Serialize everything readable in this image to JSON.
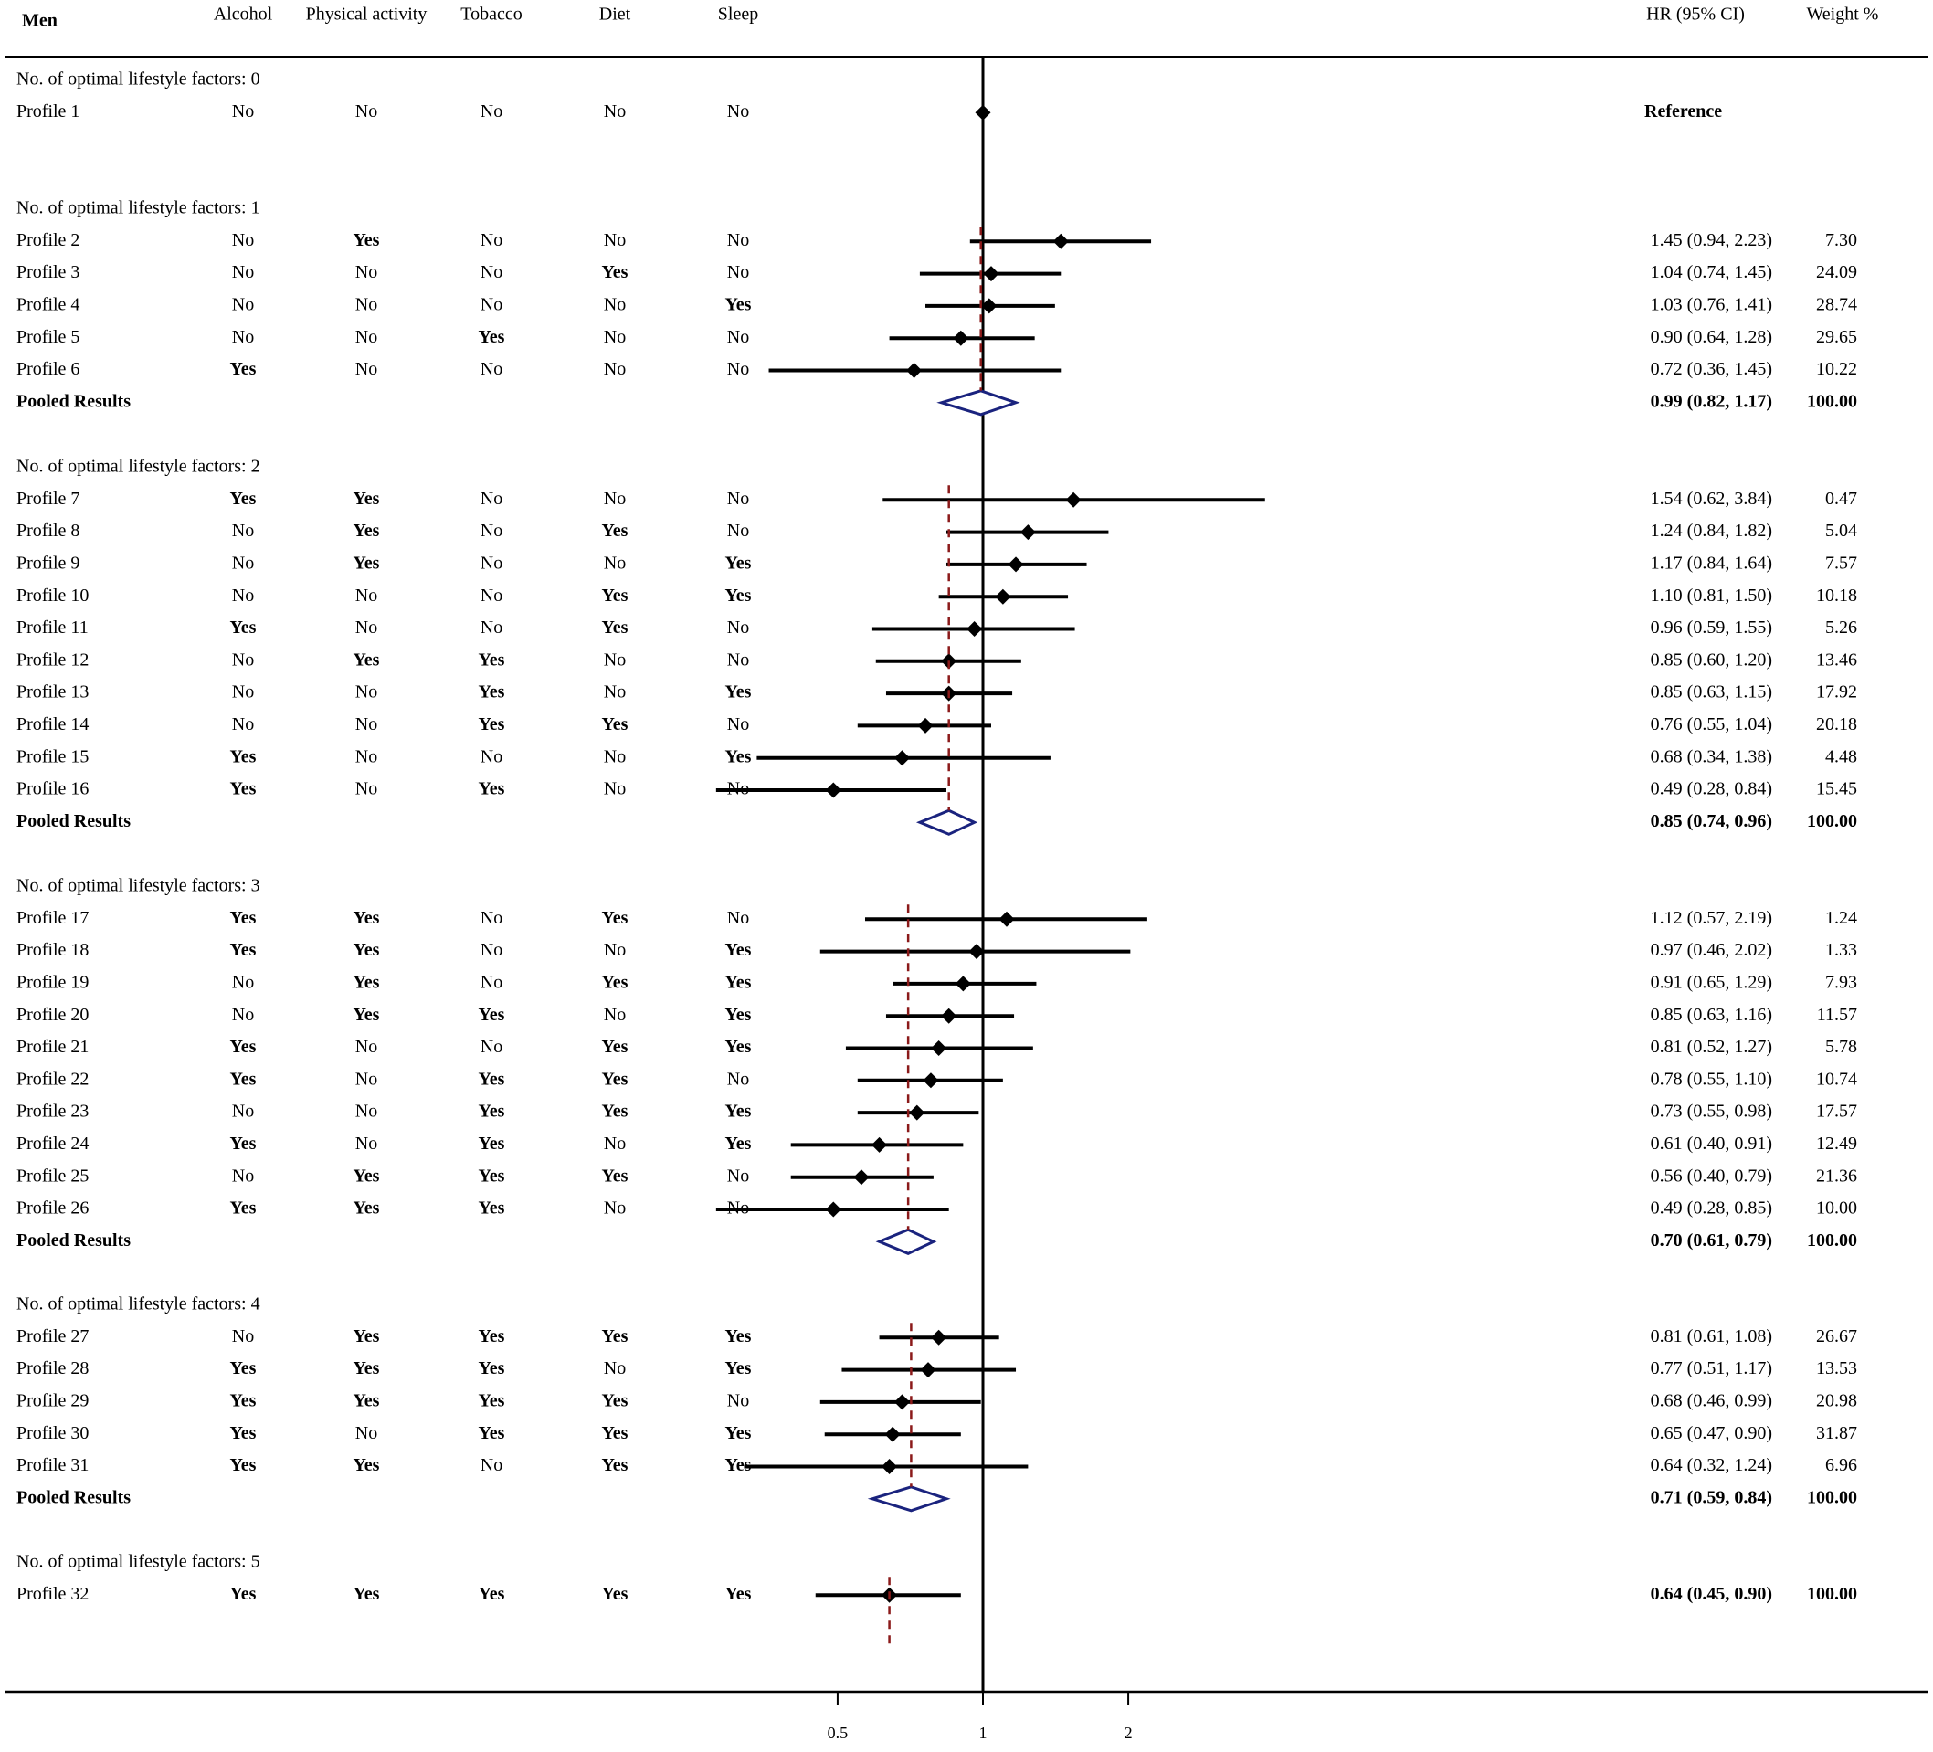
{
  "chart_data": {
    "type": "forest",
    "title": "Men",
    "header": {
      "group": "Men",
      "factors": [
        "Alcohol",
        "Physical activity",
        "Tobacco",
        "Diet",
        "Sleep"
      ],
      "hr_label": "HR (95% CI)",
      "weight_label": "Weight %"
    },
    "x_axis": {
      "ticks": [
        0.5,
        1,
        2
      ],
      "tick_labels": [
        "0.5",
        "1",
        "2"
      ],
      "reference_line": 1
    },
    "groups": [
      {
        "label": "No. of optimal lifestyle factors: 0",
        "rows": [
          {
            "profile": "Profile 1",
            "factors": [
              "No",
              "No",
              "No",
              "No",
              "No"
            ],
            "hr": 1.0,
            "lo": 1.0,
            "hi": 1.0,
            "hr_text": "Reference",
            "weight": ""
          }
        ]
      },
      {
        "label": "No. of optimal lifestyle factors: 1",
        "rows": [
          {
            "profile": "Profile 2",
            "factors": [
              "No",
              "Yes",
              "No",
              "No",
              "No"
            ],
            "hr": 1.45,
            "lo": 0.94,
            "hi": 2.23,
            "hr_text": "1.45 (0.94, 2.23)",
            "weight": "7.30"
          },
          {
            "profile": "Profile 3",
            "factors": [
              "No",
              "No",
              "No",
              "Yes",
              "No"
            ],
            "hr": 1.04,
            "lo": 0.74,
            "hi": 1.45,
            "hr_text": "1.04 (0.74, 1.45)",
            "weight": "24.09"
          },
          {
            "profile": "Profile 4",
            "factors": [
              "No",
              "No",
              "No",
              "No",
              "Yes"
            ],
            "hr": 1.03,
            "lo": 0.76,
            "hi": 1.41,
            "hr_text": "1.03 (0.76, 1.41)",
            "weight": "28.74"
          },
          {
            "profile": "Profile 5",
            "factors": [
              "No",
              "No",
              "Yes",
              "No",
              "No"
            ],
            "hr": 0.9,
            "lo": 0.64,
            "hi": 1.28,
            "hr_text": "0.90 (0.64, 1.28)",
            "weight": "29.65"
          },
          {
            "profile": "Profile 6",
            "factors": [
              "Yes",
              "No",
              "No",
              "No",
              "No"
            ],
            "hr": 0.72,
            "lo": 0.36,
            "hi": 1.45,
            "hr_text": "0.72 (0.36, 1.45)",
            "weight": "10.22"
          }
        ],
        "pooled": {
          "label": "Pooled Results",
          "hr": 0.99,
          "lo": 0.82,
          "hi": 1.17,
          "hr_text": "0.99 (0.82, 1.17)",
          "weight": "100.00"
        }
      },
      {
        "label": "No. of optimal lifestyle factors: 2",
        "rows": [
          {
            "profile": "Profile 7",
            "factors": [
              "Yes",
              "Yes",
              "No",
              "No",
              "No"
            ],
            "hr": 1.54,
            "lo": 0.62,
            "hi": 3.84,
            "hr_text": "1.54 (0.62, 3.84)",
            "weight": "0.47"
          },
          {
            "profile": "Profile 8",
            "factors": [
              "No",
              "Yes",
              "No",
              "Yes",
              "No"
            ],
            "hr": 1.24,
            "lo": 0.84,
            "hi": 1.82,
            "hr_text": "1.24 (0.84, 1.82)",
            "weight": "5.04"
          },
          {
            "profile": "Profile 9",
            "factors": [
              "No",
              "Yes",
              "No",
              "No",
              "Yes"
            ],
            "hr": 1.17,
            "lo": 0.84,
            "hi": 1.64,
            "hr_text": "1.17 (0.84, 1.64)",
            "weight": "7.57"
          },
          {
            "profile": "Profile 10",
            "factors": [
              "No",
              "No",
              "No",
              "Yes",
              "Yes"
            ],
            "hr": 1.1,
            "lo": 0.81,
            "hi": 1.5,
            "hr_text": "1.10 (0.81, 1.50)",
            "weight": "10.18"
          },
          {
            "profile": "Profile 11",
            "factors": [
              "Yes",
              "No",
              "No",
              "Yes",
              "No"
            ],
            "hr": 0.96,
            "lo": 0.59,
            "hi": 1.55,
            "hr_text": "0.96 (0.59, 1.55)",
            "weight": "5.26"
          },
          {
            "profile": "Profile 12",
            "factors": [
              "No",
              "Yes",
              "Yes",
              "No",
              "No"
            ],
            "hr": 0.85,
            "lo": 0.6,
            "hi": 1.2,
            "hr_text": "0.85 (0.60, 1.20)",
            "weight": "13.46"
          },
          {
            "profile": "Profile 13",
            "factors": [
              "No",
              "No",
              "Yes",
              "No",
              "Yes"
            ],
            "hr": 0.85,
            "lo": 0.63,
            "hi": 1.15,
            "hr_text": "0.85 (0.63, 1.15)",
            "weight": "17.92"
          },
          {
            "profile": "Profile 14",
            "factors": [
              "No",
              "No",
              "Yes",
              "Yes",
              "No"
            ],
            "hr": 0.76,
            "lo": 0.55,
            "hi": 1.04,
            "hr_text": "0.76 (0.55, 1.04)",
            "weight": "20.18"
          },
          {
            "profile": "Profile 15",
            "factors": [
              "Yes",
              "No",
              "No",
              "No",
              "Yes"
            ],
            "hr": 0.68,
            "lo": 0.34,
            "hi": 1.38,
            "hr_text": "0.68 (0.34, 1.38)",
            "weight": "4.48"
          },
          {
            "profile": "Profile 16",
            "factors": [
              "Yes",
              "No",
              "Yes",
              "No",
              "No"
            ],
            "hr": 0.49,
            "lo": 0.28,
            "hi": 0.84,
            "hr_text": "0.49 (0.28, 0.84)",
            "weight": "15.45"
          }
        ],
        "pooled": {
          "label": "Pooled Results",
          "hr": 0.85,
          "lo": 0.74,
          "hi": 0.96,
          "hr_text": "0.85 (0.74, 0.96)",
          "weight": "100.00"
        }
      },
      {
        "label": "No. of optimal lifestyle factors: 3",
        "rows": [
          {
            "profile": "Profile 17",
            "factors": [
              "Yes",
              "Yes",
              "No",
              "Yes",
              "No"
            ],
            "hr": 1.12,
            "lo": 0.57,
            "hi": 2.19,
            "hr_text": "1.12 (0.57, 2.19)",
            "weight": "1.24"
          },
          {
            "profile": "Profile 18",
            "factors": [
              "Yes",
              "Yes",
              "No",
              "No",
              "Yes"
            ],
            "hr": 0.97,
            "lo": 0.46,
            "hi": 2.02,
            "hr_text": "0.97 (0.46, 2.02)",
            "weight": "1.33"
          },
          {
            "profile": "Profile 19",
            "factors": [
              "No",
              "Yes",
              "No",
              "Yes",
              "Yes"
            ],
            "hr": 0.91,
            "lo": 0.65,
            "hi": 1.29,
            "hr_text": "0.91 (0.65, 1.29)",
            "weight": "7.93"
          },
          {
            "profile": "Profile 20",
            "factors": [
              "No",
              "Yes",
              "Yes",
              "No",
              "Yes"
            ],
            "hr": 0.85,
            "lo": 0.63,
            "hi": 1.16,
            "hr_text": "0.85 (0.63, 1.16)",
            "weight": "11.57"
          },
          {
            "profile": "Profile 21",
            "factors": [
              "Yes",
              "No",
              "No",
              "Yes",
              "Yes"
            ],
            "hr": 0.81,
            "lo": 0.52,
            "hi": 1.27,
            "hr_text": "0.81 (0.52, 1.27)",
            "weight": "5.78"
          },
          {
            "profile": "Profile 22",
            "factors": [
              "Yes",
              "No",
              "Yes",
              "Yes",
              "No"
            ],
            "hr": 0.78,
            "lo": 0.55,
            "hi": 1.1,
            "hr_text": "0.78 (0.55, 1.10)",
            "weight": "10.74"
          },
          {
            "profile": "Profile 23",
            "factors": [
              "No",
              "No",
              "Yes",
              "Yes",
              "Yes"
            ],
            "hr": 0.73,
            "lo": 0.55,
            "hi": 0.98,
            "hr_text": "0.73 (0.55, 0.98)",
            "weight": "17.57"
          },
          {
            "profile": "Profile 24",
            "factors": [
              "Yes",
              "No",
              "Yes",
              "No",
              "Yes"
            ],
            "hr": 0.61,
            "lo": 0.4,
            "hi": 0.91,
            "hr_text": "0.61 (0.40, 0.91)",
            "weight": "12.49"
          },
          {
            "profile": "Profile 25",
            "factors": [
              "No",
              "Yes",
              "Yes",
              "Yes",
              "No"
            ],
            "hr": 0.56,
            "lo": 0.4,
            "hi": 0.79,
            "hr_text": "0.56 (0.40, 0.79)",
            "weight": "21.36"
          },
          {
            "profile": "Profile 26",
            "factors": [
              "Yes",
              "Yes",
              "Yes",
              "No",
              "No"
            ],
            "hr": 0.49,
            "lo": 0.28,
            "hi": 0.85,
            "hr_text": "0.49 (0.28, 0.85)",
            "weight": "10.00"
          }
        ],
        "pooled": {
          "label": "Pooled Results",
          "hr": 0.7,
          "lo": 0.61,
          "hi": 0.79,
          "hr_text": "0.70 (0.61, 0.79)",
          "weight": "100.00"
        }
      },
      {
        "label": "No. of optimal lifestyle factors: 4",
        "rows": [
          {
            "profile": "Profile 27",
            "factors": [
              "No",
              "Yes",
              "Yes",
              "Yes",
              "Yes"
            ],
            "hr": 0.81,
            "lo": 0.61,
            "hi": 1.08,
            "hr_text": "0.81 (0.61, 1.08)",
            "weight": "26.67"
          },
          {
            "profile": "Profile 28",
            "factors": [
              "Yes",
              "Yes",
              "Yes",
              "No",
              "Yes"
            ],
            "hr": 0.77,
            "lo": 0.51,
            "hi": 1.17,
            "hr_text": "0.77 (0.51, 1.17)",
            "weight": "13.53"
          },
          {
            "profile": "Profile 29",
            "factors": [
              "Yes",
              "Yes",
              "Yes",
              "Yes",
              "No"
            ],
            "hr": 0.68,
            "lo": 0.46,
            "hi": 0.99,
            "hr_text": "0.68 (0.46, 0.99)",
            "weight": "20.98"
          },
          {
            "profile": "Profile 30",
            "factors": [
              "Yes",
              "No",
              "Yes",
              "Yes",
              "Yes"
            ],
            "hr": 0.65,
            "lo": 0.47,
            "hi": 0.9,
            "hr_text": "0.65 (0.47, 0.90)",
            "weight": "31.87"
          },
          {
            "profile": "Profile 31",
            "factors": [
              "Yes",
              "Yes",
              "No",
              "Yes",
              "Yes"
            ],
            "hr": 0.64,
            "lo": 0.32,
            "hi": 1.24,
            "hr_text": "0.64 (0.32, 1.24)",
            "weight": "6.96"
          }
        ],
        "pooled": {
          "label": "Pooled Results",
          "hr": 0.71,
          "lo": 0.59,
          "hi": 0.84,
          "hr_text": "0.71 (0.59, 0.84)",
          "weight": "100.00"
        }
      },
      {
        "label": "No. of optimal lifestyle factors: 5",
        "rows": [
          {
            "profile": "Profile 32",
            "factors": [
              "Yes",
              "Yes",
              "Yes",
              "Yes",
              "Yes"
            ],
            "hr": 0.64,
            "lo": 0.45,
            "hi": 0.9,
            "hr_text": "0.64 (0.45, 0.90)",
            "weight": "100.00",
            "bold": true
          }
        ]
      }
    ]
  },
  "colors": {
    "ink": "#000000",
    "pooled_diamond": "#1a237e",
    "pooled_line": "#8b1a1a"
  }
}
